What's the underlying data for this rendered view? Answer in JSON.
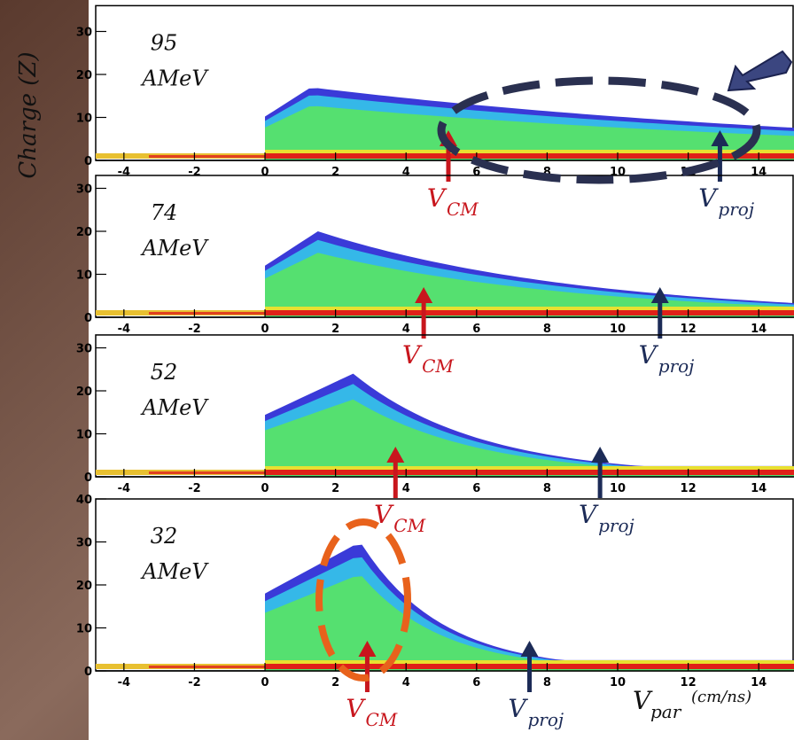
{
  "y_label": "Charge (Z)",
  "x_label": {
    "main": "V",
    "sub": "par",
    "unit": "(cm/ns)"
  },
  "markers": {
    "cm": {
      "main": "V",
      "sub": "CM",
      "color": "#c8161d"
    },
    "proj": {
      "main": "V",
      "sub": "proj",
      "color": "#1c2b57"
    }
  },
  "chart_data": [
    {
      "type": "heatmap",
      "energy": "95",
      "unit": "AMeV",
      "xlim": [
        -4.8,
        15
      ],
      "xticks": [
        -4,
        -2,
        0,
        2,
        4,
        6,
        8,
        10,
        12,
        14
      ],
      "ylim": [
        0,
        36
      ],
      "yticks": [
        0,
        10,
        20,
        30
      ],
      "v_cm": 5.2,
      "v_proj": 12.9
    },
    {
      "type": "heatmap",
      "energy": "74",
      "unit": "AMeV",
      "xlim": [
        -4.8,
        15
      ],
      "xticks": [
        -4,
        -2,
        0,
        2,
        4,
        6,
        8,
        10,
        12,
        14
      ],
      "ylim": [
        0,
        33
      ],
      "yticks": [
        0,
        10,
        20,
        30
      ],
      "v_cm": 4.5,
      "v_proj": 11.2
    },
    {
      "type": "heatmap",
      "energy": "52",
      "unit": "AMeV",
      "xlim": [
        -4.8,
        15
      ],
      "xticks": [
        -4,
        -2,
        0,
        2,
        4,
        6,
        8,
        10,
        12,
        14
      ],
      "ylim": [
        0,
        33
      ],
      "yticks": [
        0,
        10,
        20,
        30
      ],
      "v_cm": 3.7,
      "v_proj": 9.5
    },
    {
      "type": "heatmap",
      "energy": "32",
      "unit": "AMeV",
      "xlim": [
        -4.8,
        15
      ],
      "xticks": [
        -4,
        -2,
        0,
        2,
        4,
        6,
        8,
        10,
        12,
        14
      ],
      "ylim": [
        0,
        40
      ],
      "yticks": [
        0,
        10,
        20,
        30,
        40
      ],
      "v_cm": 2.9,
      "v_proj": 7.5
    }
  ]
}
